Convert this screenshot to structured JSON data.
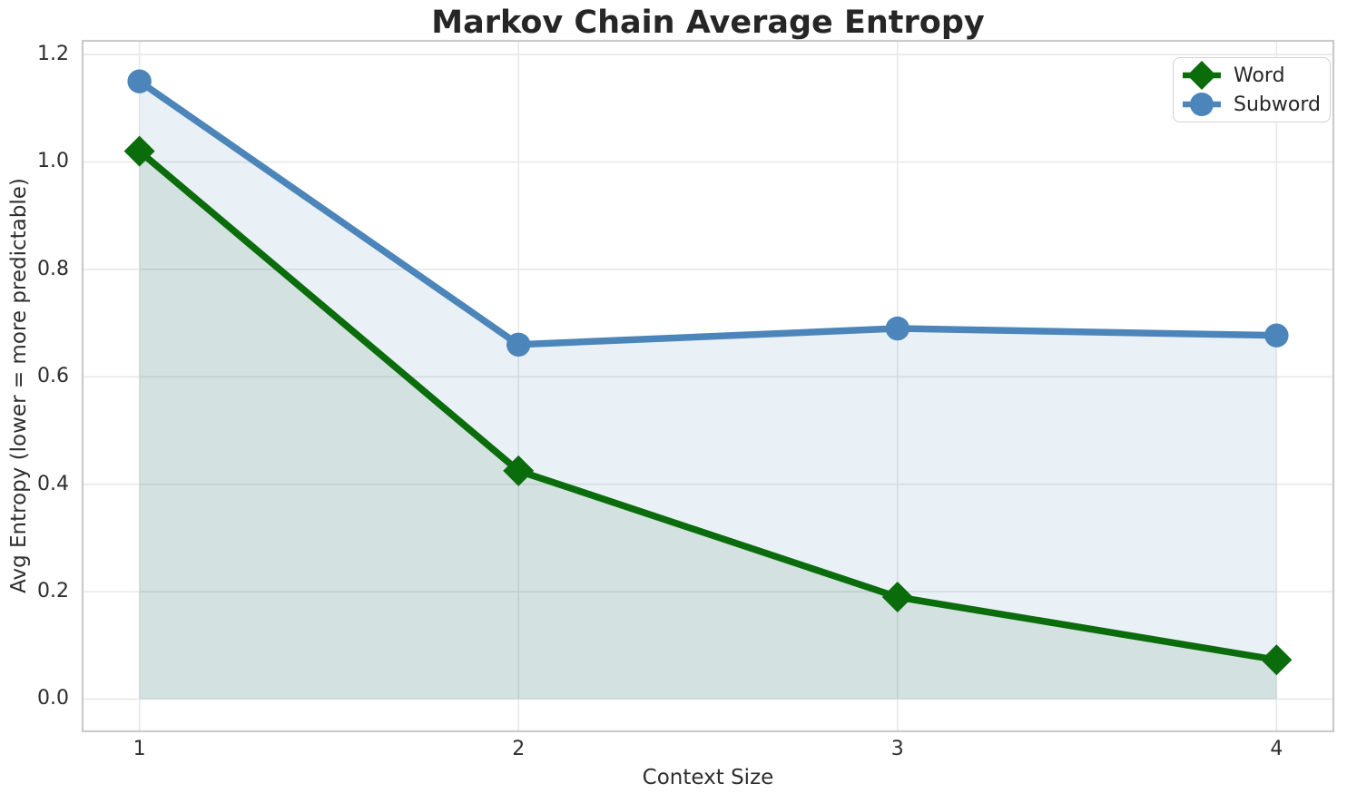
{
  "chart_data": {
    "type": "line",
    "title": "Markov Chain Average Entropy",
    "xlabel": "Context Size",
    "ylabel": "Avg Entropy (lower = more predictable)",
    "x": [
      1,
      2,
      3,
      4
    ],
    "series": [
      {
        "name": "Word",
        "marker": "diamond",
        "color": "#0a6c0a",
        "fill_color": "rgba(10,108,10,0.10)",
        "values": [
          1.02,
          0.425,
          0.19,
          0.073
        ]
      },
      {
        "name": "Subword",
        "marker": "circle",
        "color": "#4c85ba",
        "fill_color": "rgba(70,130,180,0.12)",
        "values": [
          1.15,
          0.66,
          0.69,
          0.677
        ]
      }
    ],
    "fill_to_zero": true,
    "xlim": [
      0.85,
      4.15
    ],
    "ylim": [
      -0.06,
      1.2255
    ],
    "xticks": [
      1,
      2,
      3,
      4
    ],
    "xtick_labels": [
      "1",
      "2",
      "3",
      "4"
    ],
    "yticks": [
      0.0,
      0.2,
      0.4,
      0.6,
      0.8,
      1.0,
      1.2
    ],
    "ytick_labels": [
      "0.0",
      "0.2",
      "0.4",
      "0.6",
      "0.8",
      "1.0",
      "1.2"
    ],
    "grid": true,
    "grid_color": "#e8e8e8",
    "spine_color": "#cbcbcb",
    "text_color": "#2e2e2e",
    "title_color": "#262626",
    "legend": {
      "position": "upper right",
      "entries": [
        "Word",
        "Subword"
      ]
    }
  }
}
